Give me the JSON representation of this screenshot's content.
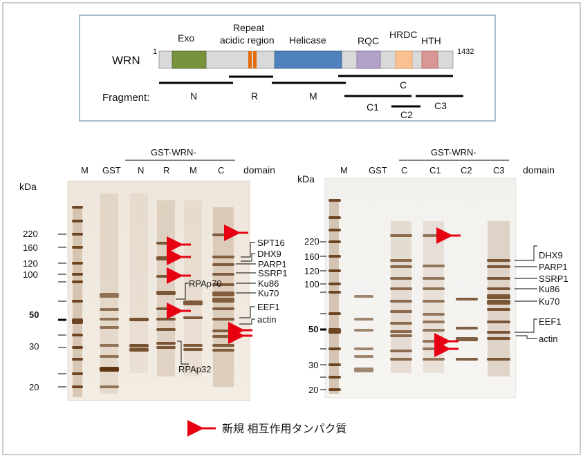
{
  "domain_schematic": {
    "protein_label": "WRN",
    "start": "1",
    "end": "1432",
    "domains": [
      {
        "name": "Exo",
        "color": "#77933c"
      },
      {
        "name": "Repeat",
        "name2": "acidic region",
        "color": "#e46c0a"
      },
      {
        "name": "Helicase",
        "color": "#4f81bd"
      },
      {
        "name": "RQC",
        "color": "#b3a2c7"
      },
      {
        "name": "HRDC",
        "color": "#fac090"
      },
      {
        "name": "HTH",
        "color": "#d99694"
      }
    ],
    "bar_color": "#d9d9d9",
    "fragment_label": "Fragment:",
    "fragments": [
      "N",
      "R",
      "M",
      "C",
      "C1",
      "C2",
      "C3"
    ]
  },
  "left_gel": {
    "kda_label": "kDa",
    "group_label": "GST-WRN-",
    "lanes": [
      "M",
      "GST",
      "N",
      "R",
      "M",
      "C"
    ],
    "domain_label": "domain",
    "markers": [
      "220",
      "160",
      "120",
      "100",
      "50",
      "30",
      "20"
    ],
    "proteins": [
      "SPT16",
      "DHX9",
      "PARP1",
      "SSRP1",
      "Ku86",
      "Ku70",
      "EEF1",
      "actin"
    ],
    "rpa": [
      "RPAp70",
      "RPAp32"
    ]
  },
  "right_gel": {
    "kda_label": "kDa",
    "group_label": "GST-WRN-",
    "lanes": [
      "M",
      "GST",
      "C",
      "C1",
      "C2",
      "C3"
    ],
    "domain_label": "domain",
    "markers": [
      "220",
      "160",
      "120",
      "100",
      "50",
      "30",
      "20"
    ],
    "proteins": [
      "DHX9",
      "PARP1",
      "SSRP1",
      "Ku86",
      "Ku70",
      "EEF1",
      "actin"
    ]
  },
  "legend": {
    "text": "新規 相互作用タンパク質",
    "arrow_color": "#e60012"
  }
}
